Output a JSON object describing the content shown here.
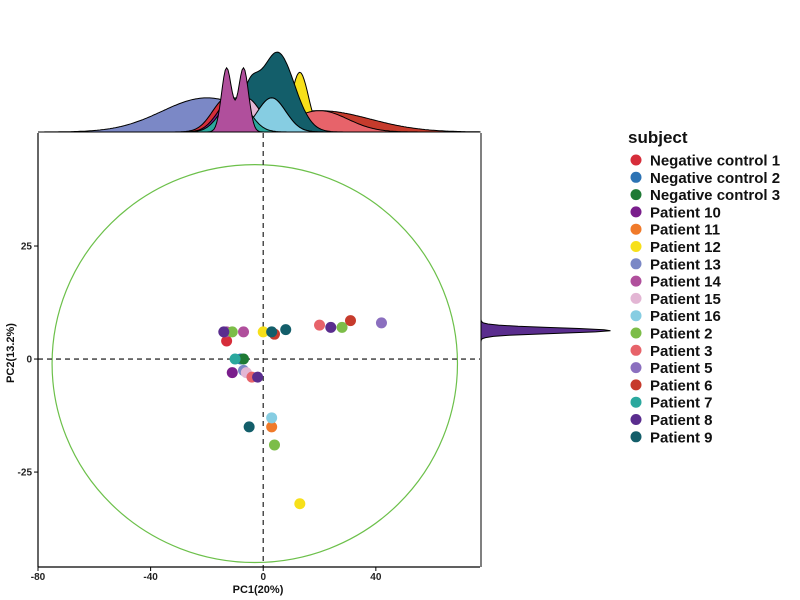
{
  "chart_data": {
    "type": "scatter",
    "title": "",
    "xlabel": "PC1(20%)",
    "ylabel": "PC2(13.2%)",
    "xlim": [
      -80,
      77
    ],
    "ylim": [
      -46,
      50
    ],
    "x_ticks": [
      -80,
      -40,
      0,
      40
    ],
    "x_tick_labels": [
      "-80",
      "-40",
      "0",
      "40"
    ],
    "y_ticks": [
      -25,
      0,
      25
    ],
    "y_tick_labels": [
      "-25",
      "0",
      "25"
    ],
    "grid": false,
    "reference_lines": {
      "x": 0,
      "y": 0,
      "style": "dashed"
    },
    "confidence_ellipse": {
      "center": [
        -3,
        -1
      ],
      "semi_axis_x": 72,
      "semi_axis_y": 44,
      "color": "#6cc04a"
    },
    "marginal_density": {
      "top": true,
      "right": true
    },
    "legend": {
      "title": "subject",
      "position": "right"
    },
    "series": [
      {
        "name": "Negative control 1",
        "color": "#d62d3a",
        "points": [
          [
            -13,
            4
          ]
        ],
        "x_density": {
          "peak": -13,
          "sd": 5,
          "height": 0.08
        }
      },
      {
        "name": "Negative control 2",
        "color": "#2c73b4",
        "points": [
          [
            -8,
            0
          ]
        ],
        "x_density": {
          "peak": -8,
          "sd": 5,
          "height": 0.08
        }
      },
      {
        "name": "Negative control 3",
        "color": "#1f7a35",
        "points": [
          [
            -7,
            0
          ]
        ],
        "x_density": {
          "peak": -7,
          "sd": 5,
          "height": 0.08
        }
      },
      {
        "name": "Patient 10",
        "color": "#7a1e8c",
        "points": [
          [
            -11,
            -3
          ]
        ],
        "x_density": {
          "peak": -11,
          "sd": 5,
          "height": 0.08
        }
      },
      {
        "name": "Patient 11",
        "color": "#f07a2a",
        "points": [
          [
            3,
            -15
          ]
        ],
        "x_density": {
          "peak": 3,
          "sd": 5,
          "height": 0.08
        }
      },
      {
        "name": "Patient 12",
        "color": "#f7e01a",
        "points": [
          [
            0,
            6
          ],
          [
            13,
            -32
          ]
        ],
        "x_density": {
          "peak": -3,
          "sd": 16,
          "height": 0.2
        }
      },
      {
        "name": "Patient 13",
        "color": "#7b88c6",
        "points": [
          [
            -7,
            -2.5
          ]
        ],
        "x_density": {
          "peak": -20,
          "sd": 16,
          "height": 0.08
        }
      },
      {
        "name": "Patient 14",
        "color": "#b04f9c",
        "points": [
          [
            -13,
            6
          ],
          [
            -7,
            6
          ]
        ],
        "x_density": {
          "peak": -13,
          "sd": 5,
          "height": 0.3
        }
      },
      {
        "name": "Patient 15",
        "color": "#e3b6d4",
        "points": [
          [
            -6,
            -3
          ]
        ],
        "x_density": {
          "peak": -6,
          "sd": 5,
          "height": 0.08
        }
      },
      {
        "name": "Patient 16",
        "color": "#86cde2",
        "points": [
          [
            3,
            -13
          ]
        ],
        "x_density": {
          "peak": 3,
          "sd": 5,
          "height": 0.08
        }
      },
      {
        "name": "Patient 2",
        "color": "#7cbd48",
        "points": [
          [
            -11,
            6
          ],
          [
            28,
            7
          ],
          [
            4,
            -19
          ]
        ],
        "x_density": {
          "peak": 0,
          "sd": 18,
          "height": 0.05
        }
      },
      {
        "name": "Patient 3",
        "color": "#e7636a",
        "points": [
          [
            20,
            7.5
          ],
          [
            -4,
            -4
          ]
        ],
        "x_density": {
          "peak": 20,
          "sd": 10,
          "height": 0.05
        }
      },
      {
        "name": "Patient 5",
        "color": "#8b6fbf",
        "points": [
          [
            42,
            8
          ]
        ],
        "x_density": {
          "peak": 10,
          "sd": 18,
          "height": 0.03
        }
      },
      {
        "name": "Patient 6",
        "color": "#c63b2c",
        "points": [
          [
            31,
            8.5
          ],
          [
            4,
            5.5
          ]
        ],
        "x_density": {
          "peak": 20,
          "sd": 18,
          "height": 0.05
        }
      },
      {
        "name": "Patient 7",
        "color": "#2ba89e",
        "points": [
          [
            -10,
            0
          ]
        ],
        "x_density": {
          "peak": -10,
          "sd": 5,
          "height": 0.08
        }
      },
      {
        "name": "Patient 8",
        "color": "#5a2d8e",
        "points": [
          [
            -14,
            6
          ],
          [
            24,
            7
          ],
          [
            -2,
            -4
          ]
        ],
        "x_density": {
          "peak": 0,
          "sd": 20,
          "height": 0.03
        }
      },
      {
        "name": "Patient 9",
        "color": "#135e6a",
        "points": [
          [
            3,
            6
          ],
          [
            8,
            6.5
          ],
          [
            -5,
            -15
          ]
        ],
        "x_density": {
          "peak": 0,
          "sd": 6,
          "height": 0.22
        }
      }
    ]
  }
}
